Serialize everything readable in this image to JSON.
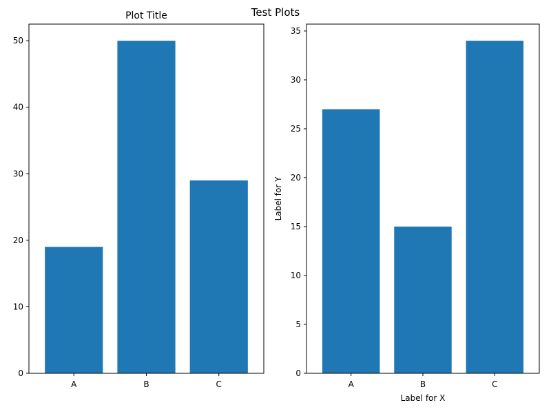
{
  "figure": {
    "suptitle": "Test Plots"
  },
  "chart_data": [
    {
      "type": "bar",
      "title": "Plot Title",
      "xlabel": "",
      "ylabel": "",
      "categories": [
        "A",
        "B",
        "C"
      ],
      "values": [
        19,
        50,
        29
      ],
      "ylim": [
        0,
        52.5
      ],
      "yticks": [
        0,
        10,
        20,
        30,
        40,
        50
      ],
      "color": "#1f77b4",
      "grid": false
    },
    {
      "type": "bar",
      "title": "",
      "xlabel": "Label for X",
      "ylabel": "Label for Y",
      "categories": [
        "A",
        "B",
        "C"
      ],
      "values": [
        27,
        15,
        34
      ],
      "ylim": [
        0,
        35.7
      ],
      "yticks": [
        0,
        5,
        10,
        15,
        20,
        25,
        30,
        35
      ],
      "color": "#1f77b4",
      "grid": false
    }
  ]
}
